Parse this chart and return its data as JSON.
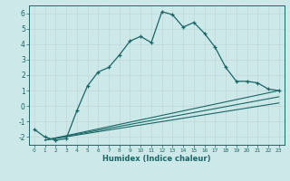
{
  "xlabel": "Humidex (Indice chaleur)",
  "ylabel": "",
  "bg_color": "#cce8e8",
  "grid_color": "#c4d8d8",
  "line_color": "#1a6666",
  "xlim": [
    -0.5,
    23.5
  ],
  "ylim": [
    -2.5,
    6.5
  ],
  "xticks": [
    0,
    1,
    2,
    3,
    4,
    5,
    6,
    7,
    8,
    9,
    10,
    11,
    12,
    13,
    14,
    15,
    16,
    17,
    18,
    19,
    20,
    21,
    22,
    23
  ],
  "yticks": [
    -2,
    -1,
    0,
    1,
    2,
    3,
    4,
    5,
    6
  ],
  "line1_x": [
    0,
    1,
    2,
    3,
    4,
    5,
    6,
    7,
    8,
    9,
    10,
    11,
    12,
    13,
    14,
    15,
    16,
    17,
    18,
    19,
    20,
    21,
    22,
    23
  ],
  "line1_y": [
    -1.5,
    -2.0,
    -2.2,
    -2.1,
    -0.3,
    1.3,
    2.2,
    2.5,
    3.3,
    4.2,
    4.5,
    4.1,
    6.1,
    5.9,
    5.1,
    5.4,
    4.7,
    3.8,
    2.5,
    1.6,
    1.6,
    1.5,
    1.1,
    1.0
  ],
  "line2_x": [
    1,
    23
  ],
  "line2_y": [
    -2.2,
    1.0
  ],
  "line3_x": [
    1,
    23
  ],
  "line3_y": [
    -2.2,
    0.6
  ],
  "line4_x": [
    1,
    23
  ],
  "line4_y": [
    -2.2,
    0.2
  ]
}
